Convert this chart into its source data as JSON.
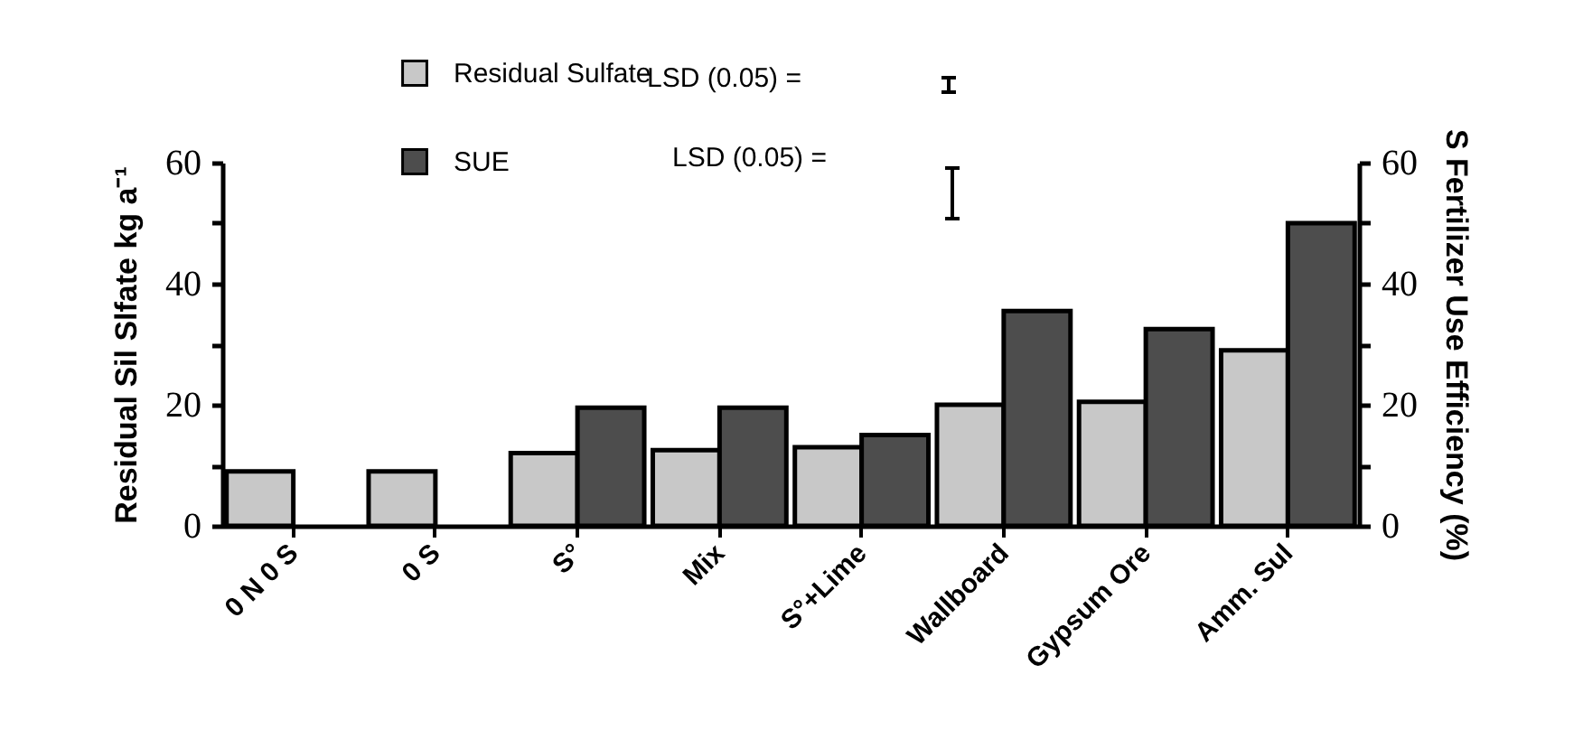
{
  "chart_data": {
    "type": "bar",
    "categories": [
      "0 N 0 S",
      "0 S",
      "S°",
      "Mix",
      "S°+Lime",
      "Wallboard",
      "Gypsum Ore",
      "Amm. Sul"
    ],
    "series": [
      {
        "name": "Residual Sulfate",
        "color": "#c8c8c8",
        "values": [
          9,
          9,
          12,
          12.5,
          13,
          20,
          20.5,
          29
        ]
      },
      {
        "name": "SUE",
        "color": "#4d4d4d",
        "axis": "y2",
        "values": [
          null,
          null,
          19.5,
          19.5,
          15,
          35.5,
          32.5,
          50
        ]
      }
    ],
    "ylabel": "Residual Sil Slfate kg a⁻¹",
    "y2label": "S Fertilizer Use Efficiency (%)",
    "ylim": [
      0,
      60
    ],
    "yticks": [
      0,
      {
        "value": 10,
        "label": null
      },
      20,
      {
        "value": 30,
        "label": null
      },
      40,
      {
        "value": 50,
        "label": null
      },
      60
    ],
    "y2lim": [
      0,
      60
    ],
    "y2ticks": [
      0,
      {
        "value": 10,
        "label": null
      },
      20,
      {
        "value": 30,
        "label": null
      },
      40,
      {
        "value": 50,
        "label": null
      },
      60
    ],
    "annotations": [
      "LSD (0.05) =",
      "LSD (0.05) ="
    ],
    "legend": "top left",
    "grid": false
  }
}
